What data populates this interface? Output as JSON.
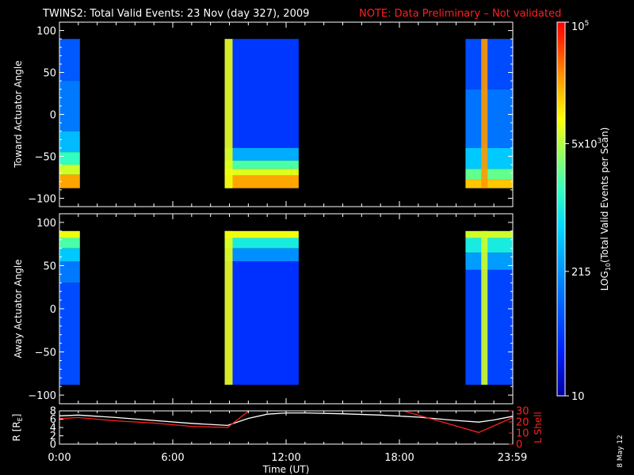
{
  "header": {
    "title": "TWINS2: Total Valid Events: 23 Nov (day 327), 2009",
    "note": "NOTE: Data Preliminary – Not validated"
  },
  "footer": {
    "date_stamp": "8 May 12"
  },
  "chart_data": [
    {
      "type": "heatmap",
      "panel": "toward",
      "ylabel": "Toward Actuator Angle",
      "ylim": [
        -110,
        110
      ],
      "yticks": [
        -100,
        -50,
        0,
        50,
        100
      ],
      "ytick_labels": [
        "−100",
        "−50",
        "0",
        "50",
        "100"
      ],
      "xlim_hours": [
        0,
        24
      ],
      "angle_range": [
        -88,
        90
      ],
      "log10_counts_range": [
        1,
        5
      ],
      "data_intervals": [
        {
          "start": "00:00",
          "end": "01:05",
          "fill": "#000",
          "bands": [
            {
              "angle_from": 90,
              "angle_to": 40,
              "log10_counts": 1.9
            },
            {
              "angle_from": 40,
              "angle_to": -20,
              "log10_counts": 2.15
            },
            {
              "angle_from": -20,
              "angle_to": -45,
              "log10_counts": 2.6
            },
            {
              "angle_from": -45,
              "angle_to": -60,
              "log10_counts": 3.2
            },
            {
              "angle_from": -60,
              "angle_to": -72,
              "log10_counts": 3.8
            },
            {
              "angle_from": -72,
              "angle_to": -88,
              "log10_counts": 4.35
            }
          ]
        },
        {
          "start": "08:45",
          "end": "12:40",
          "bands": [
            {
              "angle_from": 90,
              "angle_to": -40,
              "log10_counts": 1.65
            },
            {
              "angle_from": -40,
              "angle_to": -55,
              "log10_counts": 2.5
            },
            {
              "angle_from": -55,
              "angle_to": -65,
              "log10_counts": 3.3
            },
            {
              "angle_from": -65,
              "angle_to": -73,
              "log10_counts": 3.85
            },
            {
              "angle_from": -73,
              "angle_to": -88,
              "log10_counts": 4.35
            }
          ],
          "edge_strip": {
            "start": "08:45",
            "end": "09:10",
            "log10_counts": 3.9
          }
        },
        {
          "start": "21:30",
          "end": "23:59",
          "bands": [
            {
              "angle_from": 90,
              "angle_to": 30,
              "log10_counts": 1.8
            },
            {
              "angle_from": 30,
              "angle_to": -40,
              "log10_counts": 2.1
            },
            {
              "angle_from": -40,
              "angle_to": -65,
              "log10_counts": 2.7
            },
            {
              "angle_from": -65,
              "angle_to": -78,
              "log10_counts": 3.4
            },
            {
              "angle_from": -78,
              "angle_to": -88,
              "log10_counts": 4.2
            }
          ],
          "edge_strip": {
            "start": "22:20",
            "end": "22:40",
            "log10_counts": 4.4
          }
        }
      ]
    },
    {
      "type": "heatmap",
      "panel": "away",
      "ylabel": "Away Actuator Angle",
      "ylim": [
        -110,
        110
      ],
      "yticks": [
        -100,
        -50,
        0,
        50,
        100
      ],
      "ytick_labels": [
        "−100",
        "−50",
        "0",
        "50",
        "100"
      ],
      "xlim_hours": [
        0,
        24
      ],
      "angle_range": [
        -88,
        90
      ],
      "log10_counts_range": [
        1,
        5
      ],
      "data_intervals": [
        {
          "start": "00:00",
          "end": "01:05",
          "bands": [
            {
              "angle_from": 90,
              "angle_to": 82,
              "log10_counts": 3.9
            },
            {
              "angle_from": 82,
              "angle_to": 70,
              "log10_counts": 3.3
            },
            {
              "angle_from": 70,
              "angle_to": 55,
              "log10_counts": 2.7
            },
            {
              "angle_from": 55,
              "angle_to": 30,
              "log10_counts": 2.15
            },
            {
              "angle_from": 30,
              "angle_to": -88,
              "log10_counts": 1.8
            }
          ]
        },
        {
          "start": "08:45",
          "end": "12:40",
          "bands": [
            {
              "angle_from": 90,
              "angle_to": 82,
              "log10_counts": 3.9
            },
            {
              "angle_from": 82,
              "angle_to": 70,
              "log10_counts": 3.0
            },
            {
              "angle_from": 70,
              "angle_to": 55,
              "log10_counts": 2.3
            },
            {
              "angle_from": 55,
              "angle_to": -88,
              "log10_counts": 1.6
            }
          ],
          "edge_strip": {
            "start": "08:45",
            "end": "09:10",
            "log10_counts": 3.9
          }
        },
        {
          "start": "21:30",
          "end": "23:59",
          "bands": [
            {
              "angle_from": 90,
              "angle_to": 82,
              "log10_counts": 3.8
            },
            {
              "angle_from": 82,
              "angle_to": 65,
              "log10_counts": 3.0
            },
            {
              "angle_from": 65,
              "angle_to": 45,
              "log10_counts": 2.4
            },
            {
              "angle_from": 45,
              "angle_to": -88,
              "log10_counts": 1.75
            }
          ],
          "edge_strip": {
            "start": "22:20",
            "end": "22:40",
            "log10_counts": 3.8
          }
        }
      ]
    },
    {
      "type": "line",
      "panel": "ephemeris",
      "ylabel_left": "R [R",
      "ylabel_left_sub": "E",
      "ylabel_left_end": "]",
      "ylabel_right": "L Shell",
      "ylim_left": [
        0,
        8
      ],
      "ylim_right": [
        0,
        30
      ],
      "yticks_left": [
        0,
        2,
        4,
        6,
        8
      ],
      "yticks_right": [
        0,
        10,
        20,
        30
      ],
      "xlabel": "Time (UT)",
      "xticks": [
        "0:00",
        "6:00",
        "12:00",
        "18:00",
        "23:59"
      ],
      "xtick_hours": [
        0,
        6,
        12,
        18,
        23.98
      ],
      "series": [
        {
          "color": "#ffffff",
          "axis": "left",
          "x": [
            0,
            1,
            3,
            5,
            7,
            8.9,
            10,
            11,
            12,
            13,
            15,
            17,
            19,
            21,
            22.2,
            23,
            24
          ],
          "y": [
            6.8,
            7.0,
            6.4,
            5.7,
            5.0,
            4.5,
            6.2,
            7.2,
            7.5,
            7.5,
            7.3,
            7.0,
            6.5,
            5.7,
            5.3,
            5.8,
            6.7
          ]
        },
        {
          "color": "#ff2020",
          "axis": "right",
          "segments": [
            {
              "x": [
                0,
                1,
                3,
                5,
                7,
                8.9,
                10.1
              ],
              "y": [
                23,
                24,
                21,
                19,
                16,
                15,
                31
              ]
            },
            {
              "x": [
                18,
                22.2,
                24
              ],
              "y": [
                31,
                10.5,
                24
              ]
            }
          ]
        }
      ]
    }
  ],
  "colorbar": {
    "label": "LOG",
    "label_sub": "10",
    "label_rest": "(Total Valid Events per Scan)",
    "scale": "log",
    "range_log10": [
      1,
      5
    ],
    "ticks": [
      {
        "log10": 1,
        "text": "10",
        "sup": ""
      },
      {
        "log10": 2.332,
        "text": "215",
        "sup": ""
      },
      {
        "log10": 3.699,
        "text": "5x10",
        "sup": "3"
      },
      {
        "log10": 5,
        "text": "10",
        "sup": "5"
      }
    ]
  }
}
